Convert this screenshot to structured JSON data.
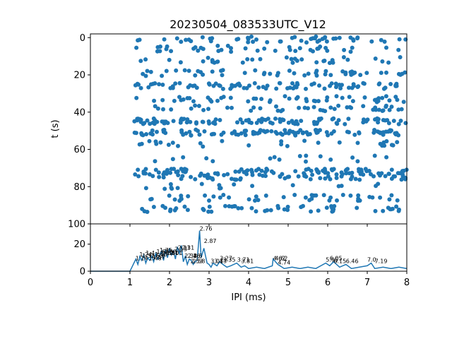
{
  "figure": {
    "title": "20230504_083533UTC_V12"
  },
  "chart_data": [
    {
      "type": "scatter",
      "panel": "top",
      "title": "20230504_083533UTC_V12",
      "xlabel": "",
      "ylabel": "t (s)",
      "xlim": [
        0,
        8
      ],
      "ylim": [
        100,
        -2
      ],
      "y_inverted": true,
      "yticks": [
        0,
        20,
        40,
        60,
        80,
        100
      ],
      "x_tick_labels_shown": false,
      "marker_color": "#1f77b4",
      "bands": [
        {
          "t": 1,
          "x_from": 1.1,
          "x_to": 8.0,
          "density": 0.45
        },
        {
          "t": 6,
          "x_from": 1.1,
          "x_to": 8.0,
          "density": 0.35
        },
        {
          "t": 12,
          "x_from": 1.1,
          "x_to": 8.0,
          "density": 0.3
        },
        {
          "t": 19,
          "x_from": 1.1,
          "x_to": 8.0,
          "density": 0.45
        },
        {
          "t": 26,
          "x_from": 1.1,
          "x_to": 8.0,
          "density": 0.75
        },
        {
          "t": 33,
          "x_from": 1.1,
          "x_to": 8.0,
          "density": 0.45
        },
        {
          "t": 38,
          "x_from": 1.1,
          "x_to": 8.0,
          "density": 0.4
        },
        {
          "t": 45,
          "x_from": 1.1,
          "x_to": 8.0,
          "density": 0.95
        },
        {
          "t": 51,
          "x_from": 1.1,
          "x_to": 8.0,
          "density": 0.95
        },
        {
          "t": 57,
          "x_from": 1.1,
          "x_to": 8.0,
          "density": 0.25
        },
        {
          "t": 65,
          "x_from": 1.1,
          "x_to": 8.0,
          "density": 0.15
        },
        {
          "t": 72,
          "x_from": 1.1,
          "x_to": 8.0,
          "density": 0.9
        },
        {
          "t": 75,
          "x_from": 1.1,
          "x_to": 8.0,
          "density": 0.55
        },
        {
          "t": 80,
          "x_from": 1.1,
          "x_to": 8.0,
          "density": 0.15
        },
        {
          "t": 86,
          "x_from": 1.1,
          "x_to": 8.0,
          "density": 0.4
        },
        {
          "t": 92,
          "x_from": 1.1,
          "x_to": 8.0,
          "density": 0.5
        }
      ]
    },
    {
      "type": "line",
      "panel": "bottom",
      "xlabel": "IPI (ms)",
      "ylabel": "",
      "xlim": [
        0,
        8
      ],
      "ylim": [
        0,
        35
      ],
      "xticks": [
        0,
        1,
        2,
        3,
        4,
        5,
        6,
        7,
        8
      ],
      "yticks": [
        0,
        20
      ],
      "line_color": "#1f77b4",
      "series": [
        {
          "x": [
            0,
            1.0,
            1.05,
            1.1,
            1.15,
            1.2,
            1.25,
            1.3,
            1.35,
            1.4,
            1.45,
            1.5,
            1.55,
            1.6,
            1.65,
            1.7,
            1.75,
            1.8,
            1.85,
            1.9,
            1.95,
            2.0,
            2.05,
            2.1,
            2.15,
            2.2,
            2.25,
            2.3,
            2.35,
            2.4,
            2.45,
            2.5,
            2.55,
            2.6,
            2.65,
            2.7,
            2.76,
            2.8,
            2.87,
            2.95,
            3.0,
            3.05,
            3.1,
            3.2,
            3.27,
            3.35,
            3.45,
            3.55,
            3.7,
            3.81,
            3.9,
            4.0,
            4.2,
            4.4,
            4.6,
            4.62,
            4.74,
            4.9,
            5.1,
            5.3,
            5.5,
            5.7,
            5.95,
            6.05,
            6.15,
            6.3,
            6.46,
            6.6,
            6.8,
            7.0,
            7.1,
            7.19,
            7.4,
            7.6,
            7.8,
            8.0
          ],
          "y": [
            0,
            0,
            3,
            6,
            9,
            5,
            11,
            8,
            12,
            6,
            10,
            8,
            11,
            7,
            13,
            9,
            12,
            15,
            8,
            16,
            10,
            17,
            12,
            15,
            9,
            18,
            13,
            19,
            7,
            11,
            5,
            9,
            8,
            5,
            7,
            8,
            30,
            10,
            17,
            6,
            5,
            3,
            6,
            4,
            7,
            5,
            3,
            4,
            6,
            3,
            4,
            2,
            3,
            2,
            4,
            9,
            5,
            2,
            3,
            2,
            3,
            2,
            6,
            4,
            7,
            3,
            5,
            2,
            3,
            4,
            6,
            2,
            3,
            2,
            3,
            2
          ]
        }
      ],
      "annotations": [
        {
          "label": "1.14",
          "x": 1.14,
          "y": 8
        },
        {
          "label": "1.24",
          "x": 1.24,
          "y": 11
        },
        {
          "label": "1.31",
          "x": 1.31,
          "y": 10
        },
        {
          "label": "1.4",
          "x": 1.4,
          "y": 12
        },
        {
          "label": "1.48",
          "x": 1.48,
          "y": 8
        },
        {
          "label": "1.53",
          "x": 1.53,
          "y": 10
        },
        {
          "label": "1.57",
          "x": 1.57,
          "y": 9
        },
        {
          "label": "1.63",
          "x": 1.63,
          "y": 11
        },
        {
          "label": "1.67",
          "x": 1.67,
          "y": 13
        },
        {
          "label": "1.75",
          "x": 1.75,
          "y": 14
        },
        {
          "label": "1.81",
          "x": 1.81,
          "y": 12
        },
        {
          "label": "1.86",
          "x": 1.86,
          "y": 13
        },
        {
          "label": "1.91",
          "x": 1.91,
          "y": 12
        },
        {
          "label": "2.01",
          "x": 2.01,
          "y": 12
        },
        {
          "label": "2.13",
          "x": 2.13,
          "y": 15
        },
        {
          "label": "2.21",
          "x": 2.21,
          "y": 16
        },
        {
          "label": "2.31",
          "x": 2.31,
          "y": 16
        },
        {
          "label": "2.38",
          "x": 2.38,
          "y": 10
        },
        {
          "label": "2.46",
          "x": 2.46,
          "y": 10
        },
        {
          "label": "2.53",
          "x": 2.53,
          "y": 6
        },
        {
          "label": "2.58",
          "x": 2.58,
          "y": 6
        },
        {
          "label": "2.6",
          "x": 2.6,
          "y": 10
        },
        {
          "label": "2.76",
          "x": 2.76,
          "y": 30
        },
        {
          "label": "2.87",
          "x": 2.87,
          "y": 21
        },
        {
          "label": "3.04",
          "x": 3.04,
          "y": 6
        },
        {
          "label": "3.13",
          "x": 3.13,
          "y": 6
        },
        {
          "label": "3.27",
          "x": 3.27,
          "y": 8
        },
        {
          "label": "3.35",
          "x": 3.35,
          "y": 7
        },
        {
          "label": "3.71",
          "x": 3.71,
          "y": 7
        },
        {
          "label": "3.81",
          "x": 3.81,
          "y": 6
        },
        {
          "label": "4.62",
          "x": 4.62,
          "y": 8
        },
        {
          "label": "4.62",
          "x": 4.67,
          "y": 8
        },
        {
          "label": "4.74",
          "x": 4.74,
          "y": 5
        },
        {
          "label": "5.95",
          "x": 5.95,
          "y": 7
        },
        {
          "label": "6.05",
          "x": 6.05,
          "y": 8
        },
        {
          "label": "6.15",
          "x": 6.15,
          "y": 6
        },
        {
          "label": "6.46",
          "x": 6.46,
          "y": 6
        },
        {
          "label": "7.0",
          "x": 7.0,
          "y": 7
        },
        {
          "label": "7.19",
          "x": 7.19,
          "y": 6
        }
      ]
    }
  ]
}
